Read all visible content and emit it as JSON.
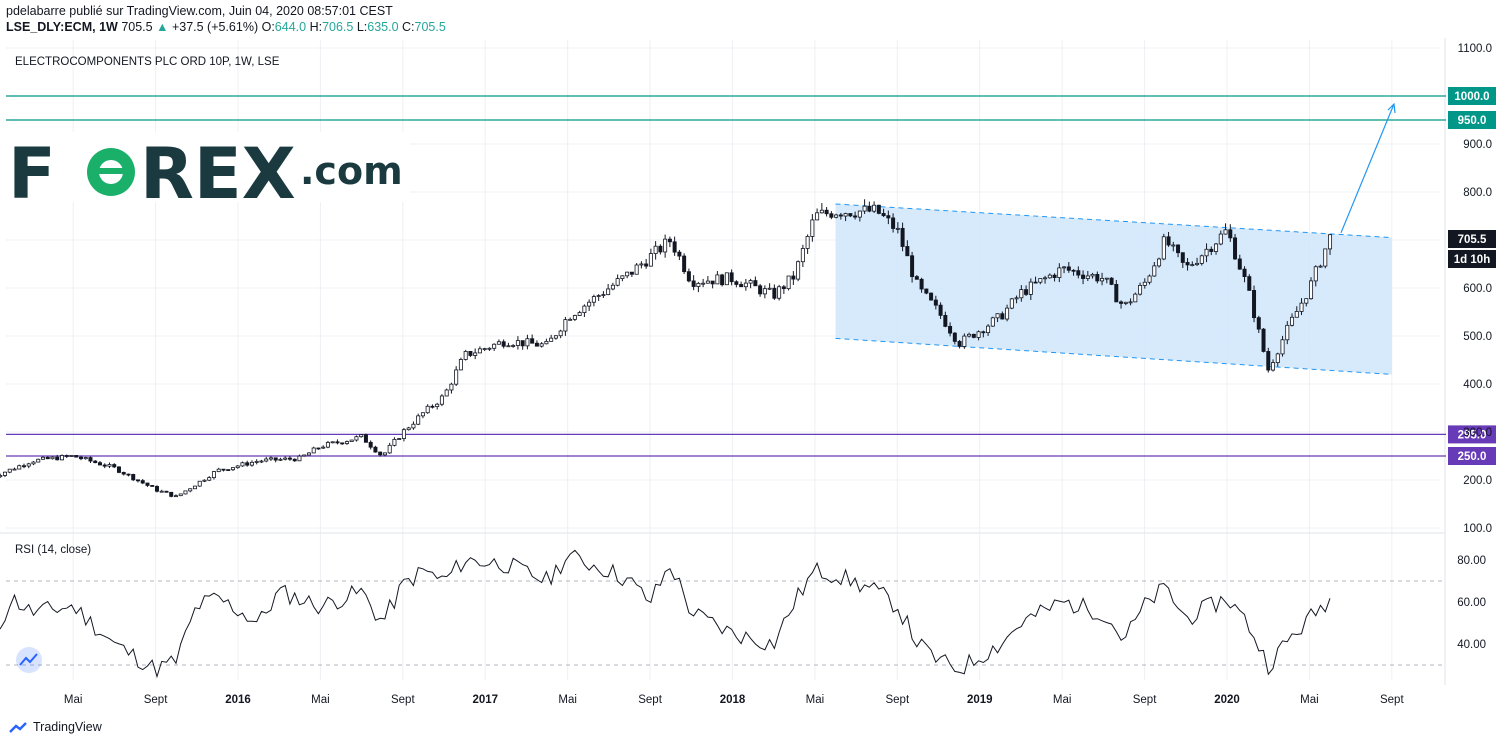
{
  "header": {
    "publisher_line": "pdelabarre publié sur TradingView.com, Juin 04, 2020 08:57:01 CEST",
    "symbol": "LSE_DLY:ECM, 1W",
    "last": "705.5",
    "change": "+37.5 (+5.61%)",
    "open_label": "O:",
    "open": "644.0",
    "high_label": "H:",
    "high": "706.5",
    "low_label": "L:",
    "low": "635.0",
    "close_label": "C:",
    "close": "705.5"
  },
  "logo": {
    "text": "FOREX",
    "suffix": ".com",
    "brand_color": "#1a3a40",
    "accent_color": "#1ab06a"
  },
  "footer": {
    "brand": "TradingView"
  },
  "colors": {
    "up": "#26a69a",
    "support": "#009688",
    "resistance_purple": "#673ab7",
    "channel_fill": "#cfe6fb",
    "channel_line": "#2196f3"
  },
  "chart_data": [
    {
      "type": "candlestick",
      "title": "ELECTROCOMPONENTS PLC ORD 10P, 1W, LSE",
      "yticks": [
        "100.0",
        "200.0",
        "300.0",
        "400.0",
        "500.0",
        "600.0",
        "700.0",
        "800.0",
        "900.0",
        "1100.0"
      ],
      "ylim": [
        100,
        1100
      ],
      "x_ticks": [
        "Mai",
        "Sept",
        "2016",
        "Mai",
        "Sept",
        "2017",
        "Mai",
        "Sept",
        "2018",
        "Mai",
        "Sept",
        "2019",
        "Mai",
        "Sept",
        "2020",
        "Mai",
        "Sept"
      ],
      "horizontal_levels": [
        {
          "label": "1000.0",
          "value": 1000,
          "color": "#009688"
        },
        {
          "label": "950.0",
          "value": 950,
          "color": "#009688"
        },
        {
          "label": "295.0",
          "value": 295,
          "color": "#673ab7"
        },
        {
          "label": "250.0",
          "value": 250,
          "color": "#673ab7"
        }
      ],
      "last_price": {
        "label": "705.5",
        "countdown": "1d 10h"
      },
      "channel": {
        "start_date": "2018-06",
        "end_date": "2020-09",
        "upper": [
          775,
          705
        ],
        "lower": [
          495,
          420
        ]
      },
      "projection_arrow": {
        "from": [
          715,
          "2020-06"
        ],
        "to": [
          1000,
          "2020-07"
        ]
      },
      "close_path": [
        [
          "2015-01",
          205
        ],
        [
          "2015-03",
          240
        ],
        [
          "2015-05",
          250
        ],
        [
          "2015-07",
          225
        ],
        [
          "2015-09",
          180
        ],
        [
          "2015-10",
          165
        ],
        [
          "2015-12",
          220
        ],
        [
          "2016-02",
          240
        ],
        [
          "2016-04",
          245
        ],
        [
          "2016-05",
          270
        ],
        [
          "2016-07",
          290
        ],
        [
          "2016-08",
          250
        ],
        [
          "2016-09",
          300
        ],
        [
          "2016-10",
          340
        ],
        [
          "2016-11",
          375
        ],
        [
          "2016-12",
          460
        ],
        [
          "2017-02",
          490
        ],
        [
          "2017-04",
          480
        ],
        [
          "2017-05",
          540
        ],
        [
          "2017-07",
          600
        ],
        [
          "2017-08",
          630
        ],
        [
          "2017-10",
          700
        ],
        [
          "2017-11",
          615
        ],
        [
          "2018-01",
          620
        ],
        [
          "2018-03",
          585
        ],
        [
          "2018-04",
          625
        ],
        [
          "2018-05",
          750
        ],
        [
          "2018-06",
          760
        ],
        [
          "2018-08",
          760
        ],
        [
          "2018-09",
          720
        ],
        [
          "2018-10",
          600
        ],
        [
          "2018-11",
          550
        ],
        [
          "2018-12",
          485
        ],
        [
          "2019-02",
          540
        ],
        [
          "2019-03",
          590
        ],
        [
          "2019-05",
          640
        ],
        [
          "2019-07",
          620
        ],
        [
          "2019-08",
          560
        ],
        [
          "2019-09",
          610
        ],
        [
          "2019-10",
          700
        ],
        [
          "2019-11",
          640
        ],
        [
          "2020-01",
          720
        ],
        [
          "2020-02",
          600
        ],
        [
          "2020-03",
          430
        ],
        [
          "2020-04",
          520
        ],
        [
          "2020-05",
          600
        ],
        [
          "2020-06",
          705.5
        ]
      ]
    },
    {
      "type": "line",
      "title": "RSI (14, close)",
      "yticks": [
        "40.00",
        "60.00",
        "80.00"
      ],
      "ylim": [
        20,
        90
      ],
      "bands": [
        30,
        70
      ],
      "values": [
        [
          "2015-01",
          38
        ],
        [
          "2015-02",
          62
        ],
        [
          "2015-03",
          55
        ],
        [
          "2015-05",
          58
        ],
        [
          "2015-07",
          40
        ],
        [
          "2015-09",
          28
        ],
        [
          "2015-10",
          32
        ],
        [
          "2015-11",
          58
        ],
        [
          "2015-12",
          62
        ],
        [
          "2016-02",
          50
        ],
        [
          "2016-03",
          65
        ],
        [
          "2016-05",
          58
        ],
        [
          "2016-07",
          65
        ],
        [
          "2016-08",
          50
        ],
        [
          "2016-09",
          68
        ],
        [
          "2016-10",
          75
        ],
        [
          "2016-11",
          70
        ],
        [
          "2016-12",
          80
        ],
        [
          "2017-02",
          78
        ],
        [
          "2017-04",
          70
        ],
        [
          "2017-05",
          82
        ],
        [
          "2017-07",
          75
        ],
        [
          "2017-08",
          70
        ],
        [
          "2017-09",
          60
        ],
        [
          "2017-10",
          78
        ],
        [
          "2017-11",
          55
        ],
        [
          "2018-01",
          45
        ],
        [
          "2018-03",
          40
        ],
        [
          "2018-04",
          60
        ],
        [
          "2018-05",
          75
        ],
        [
          "2018-06",
          73
        ],
        [
          "2018-08",
          65
        ],
        [
          "2018-09",
          58
        ],
        [
          "2018-10",
          40
        ],
        [
          "2018-11",
          32
        ],
        [
          "2018-12",
          28
        ],
        [
          "2019-02",
          40
        ],
        [
          "2019-03",
          50
        ],
        [
          "2019-05",
          60
        ],
        [
          "2019-07",
          55
        ],
        [
          "2019-08",
          42
        ],
        [
          "2019-09",
          58
        ],
        [
          "2019-10",
          67
        ],
        [
          "2019-11",
          52
        ],
        [
          "2020-01",
          62
        ],
        [
          "2020-02",
          50
        ],
        [
          "2020-03",
          30
        ],
        [
          "2020-04",
          42
        ],
        [
          "2020-05",
          52
        ],
        [
          "2020-06",
          62
        ]
      ]
    }
  ]
}
